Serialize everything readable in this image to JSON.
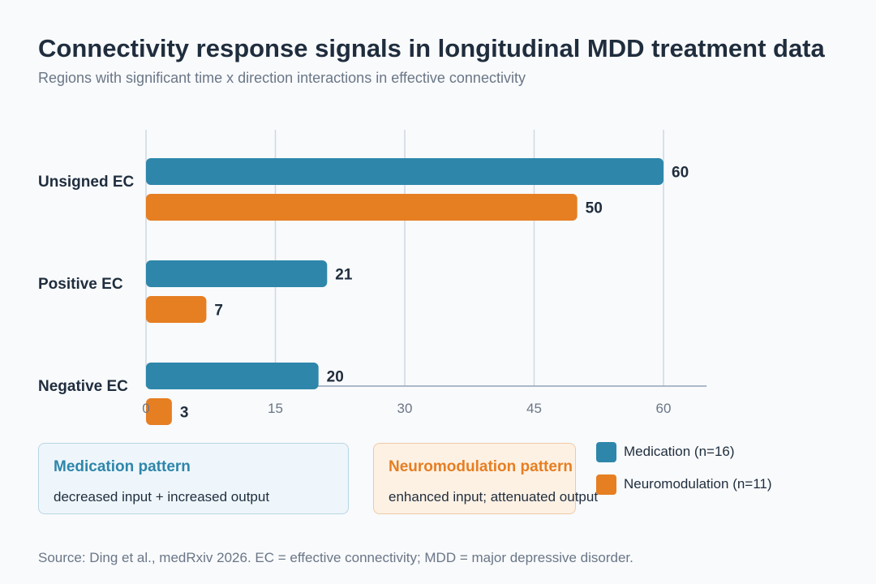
{
  "header": {
    "title": "Connectivity response signals in longitudinal MDD treatment data",
    "subtitle": "Regions with significant time x direction interactions in effective connectivity"
  },
  "chart_data": {
    "type": "bar",
    "orientation": "horizontal",
    "categories": [
      "Unsigned EC",
      "Positive EC",
      "Negative EC"
    ],
    "series": [
      {
        "name": "Medication (n=16)",
        "values": [
          60,
          21,
          20
        ],
        "color": "#2e86ab"
      },
      {
        "name": "Neuromodulation (n=11)",
        "values": [
          50,
          7,
          3
        ],
        "color": "#e67e22"
      }
    ],
    "xticks": [
      "0",
      "15",
      "30",
      "45",
      "60"
    ],
    "xlim": [
      0,
      65
    ],
    "grid": true,
    "legend_position": "bottom-right"
  },
  "cards": {
    "medication": {
      "title": "Medication pattern",
      "body": "decreased input + increased output",
      "color": "#2e86ab"
    },
    "neuromodulation": {
      "title": "Neuromodulation pattern",
      "body": "enhanced input; attenuated output",
      "color": "#e67e22"
    }
  },
  "footer": {
    "source": "Source: Ding et al., medRxiv 2026. EC = effective connectivity; MDD = major depressive disorder."
  }
}
